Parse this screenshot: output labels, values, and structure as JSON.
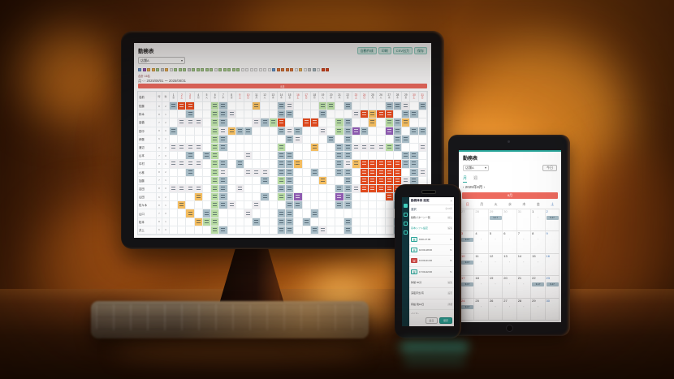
{
  "scene": {
    "accent_teal": "#2aa79b",
    "banner_red": "#ed6a5e",
    "cell_colors": {
      "g": "#a9bdc7",
      "G": "#b9dca4",
      "O": "#e14a1e",
      "y": "#f4bd60",
      "p": "#8e5bb0",
      "w": "#efecef"
    }
  },
  "monitor": {
    "title": "勤務表",
    "toolbar_buttons": [
      "自動作成",
      "印刷",
      "CSV出力",
      "保存"
    ],
    "store_select": "店舗A",
    "select_caret": "▾",
    "legend": [
      "#6b9bd2",
      "#9b59b6",
      "#f0b356",
      "#f0b356",
      "#a8cf8e",
      "#cfcfcf",
      "#f0b356",
      "#ededed",
      "#a8cf8e",
      "#a8cf8e",
      "#a8cf8e",
      "#cfcfcf",
      "#a8cf8e",
      "#a8cf8e",
      "#a8cf8e",
      "#a8cf8e",
      "#a8cf8e",
      "#ededed",
      "#a8cf8e",
      "#a8cf8e",
      "#a8cf8e",
      "#a8cf8e",
      "#a8cf8e",
      "#f7f7f7",
      "#f7f7f7",
      "#f7f7f7",
      "#f7f7f7",
      "#f7f7f7",
      "#f7f7f7",
      "#f7f7f7",
      "#6b9bd2",
      "#e57a3c",
      "#e57a3c",
      "#e57a3c",
      "#e57a3c",
      "#f7f7f7",
      "#f0b356",
      "#f7f7f7",
      "#cfcfcf",
      "#aabbc4",
      "#f7f7f7",
      "#e2491f",
      "#e2491f"
    ],
    "summary": "合計 16名",
    "nav": "月 ‹ › 2025/08/01 〜 2025/08/31",
    "banner": "8月",
    "grid": {
      "corner": [
        "名前",
        "時",
        "数"
      ],
      "first_day_index": 5,
      "day_count": 31,
      "rows": [
        {
          "name": "佐藤",
          "a": "8",
          "b": "2",
          "cells": "gOO..Gg...y..gw...GG.g....ggw.g"
        },
        {
          "name": "鈴木",
          "a": "8",
          "b": "1",
          "cells": "..g..Ggw.....gg...g...wOyOO.gg."
        },
        {
          "name": "高橋",
          "a": "7",
          "b": "2",
          "cells": ".www.Gg...wgGO..OO..Gg..y.Ggy.."
        },
        {
          "name": "田中",
          "a": "8",
          "b": "0",
          "cells": "g....Gwygg...gwg..w.Ggpg..pg.gg"
        },
        {
          "name": "伊藤",
          "a": "6",
          "b": "1",
          "cells": ".....Gg.......gw...g.g.....gg.."
        },
        {
          "name": "渡辺",
          "a": "8",
          "b": "2",
          "cells": "wwww.Gg......G...y..ggwwwwGg..w"
        },
        {
          "name": "山本",
          "a": "7",
          "b": "0",
          "cells": "..g.gG...w...gg.....gg......gg."
        },
        {
          "name": "中村",
          "a": "8",
          "b": "1",
          "cells": "wwww.Gg.g....ggy....gwyOOOOOgg."
        },
        {
          "name": "小林",
          "a": "8",
          "b": "2",
          "cells": "..g..Gw..www.gg..g..gg.OOOOO.gw"
        },
        {
          "name": "加藤",
          "a": "7",
          "b": "1",
          "cells": ".....Gg....g.Gg...y..g.OOOOOwg."
        },
        {
          "name": "吉田",
          "a": "8",
          "b": "0",
          "cells": "wwww.Gg.w....gg.....ggwOOOOO.gg"
        },
        {
          "name": "山田",
          "a": "6",
          "b": "2",
          "cells": "...y.Gg....g.Ggp....pg....Og..."
        },
        {
          "name": "佐々木",
          "a": "8",
          "b": "1",
          "cells": ".y...Ggw..w...gg....gg.....gy.w"
        },
        {
          "name": "山口",
          "a": "7",
          "b": "0",
          "cells": "..y.gG...w...gg..g..........gg."
        },
        {
          "name": "松本",
          "a": "8",
          "b": "1",
          "cells": "...yGG....g..gg.g....g.....gg.."
        },
        {
          "name": "井上",
          "a": "6",
          "b": "0",
          "cells": ".....Gg......gg..gw..g.....g..w"
        }
      ]
    }
  },
  "phone": {
    "rail_icons": [
      "calendar",
      "clock",
      "user",
      "gear"
    ],
    "header": "勤務体系 設定",
    "close": "×",
    "section_label": "選択",
    "section_note": "全10件",
    "rows": [
      {
        "label": "勤務パターン一覧",
        "right": "絞込"
      },
      {
        "label": "基本シフト設定",
        "right": "編集",
        "accent": true
      },
      {
        "tag": "早",
        "tag_color": "teal",
        "label": "9:00-17:00",
        "right": "8h"
      },
      {
        "tag": "日",
        "tag_color": "teal",
        "label": "10:00-18:00",
        "right": "8h"
      },
      {
        "tag": "遅",
        "tag_color": "red",
        "label": "13:00-21:00",
        "right": "8h"
      },
      {
        "tag": "夜",
        "tag_color": "teal",
        "label": "17:00-22:00",
        "right": "5h"
      },
      {
        "label": "休憩 60分",
        "right": "編集"
      },
      {
        "label": "深夜手当 有",
        "right": "設定"
      },
      {
        "label": "有給 残10日",
        "right": "詳細"
      }
    ],
    "pager": "‹ 1 / 3 ›",
    "cancel": "戻る",
    "save": "保存"
  },
  "tablet": {
    "title": "勤務表",
    "select": "店舗A",
    "select_caret": "▾",
    "today": "今日",
    "tabs": [
      "月",
      "週"
    ],
    "nav": "‹  2025年8月  ›",
    "banner": "8月",
    "weekdays": [
      "日",
      "月",
      "火",
      "水",
      "木",
      "金",
      "土"
    ],
    "pill": "9-17",
    "weeks": [
      [
        {
          "d": 27,
          "o": 1
        },
        {
          "d": 28,
          "o": 1
        },
        {
          "d": 29,
          "o": 1,
          "p": 1
        },
        {
          "d": 30,
          "o": 1
        },
        {
          "d": 31,
          "o": 1
        },
        {
          "d": 1,
          "e": 1
        },
        {
          "d": 2,
          "p": 1
        }
      ],
      [
        {
          "d": 3,
          "p": 1
        },
        {
          "d": 4,
          "e": 1
        },
        {
          "d": 5,
          "e": 1
        },
        {
          "d": 6,
          "e": 1
        },
        {
          "d": 7,
          "e": 1
        },
        {
          "d": 8,
          "e": 1
        },
        {
          "d": 9
        }
      ],
      [
        {
          "d": 10,
          "p": 1
        },
        {
          "d": 11,
          "e": 1
        },
        {
          "d": 12,
          "e": 1
        },
        {
          "d": 13,
          "e": 1
        },
        {
          "d": 14,
          "e": 1
        },
        {
          "d": 15,
          "e": 1
        },
        {
          "d": 16
        }
      ],
      [
        {
          "d": 17,
          "p": 1
        },
        {
          "d": 18,
          "e": 1
        },
        {
          "d": 19,
          "e": 1
        },
        {
          "d": 20,
          "e": 1
        },
        {
          "d": 21,
          "e": 1
        },
        {
          "d": 22,
          "p": 1
        },
        {
          "d": 23,
          "p": 1
        }
      ],
      [
        {
          "d": 24,
          "p": 1
        },
        {
          "d": 25,
          "e": 1
        },
        {
          "d": 26,
          "e": 1
        },
        {
          "d": 27,
          "e": 1
        },
        {
          "d": 28,
          "e": 1
        },
        {
          "d": 29,
          "e": 1
        },
        {
          "d": 30
        }
      ]
    ]
  }
}
